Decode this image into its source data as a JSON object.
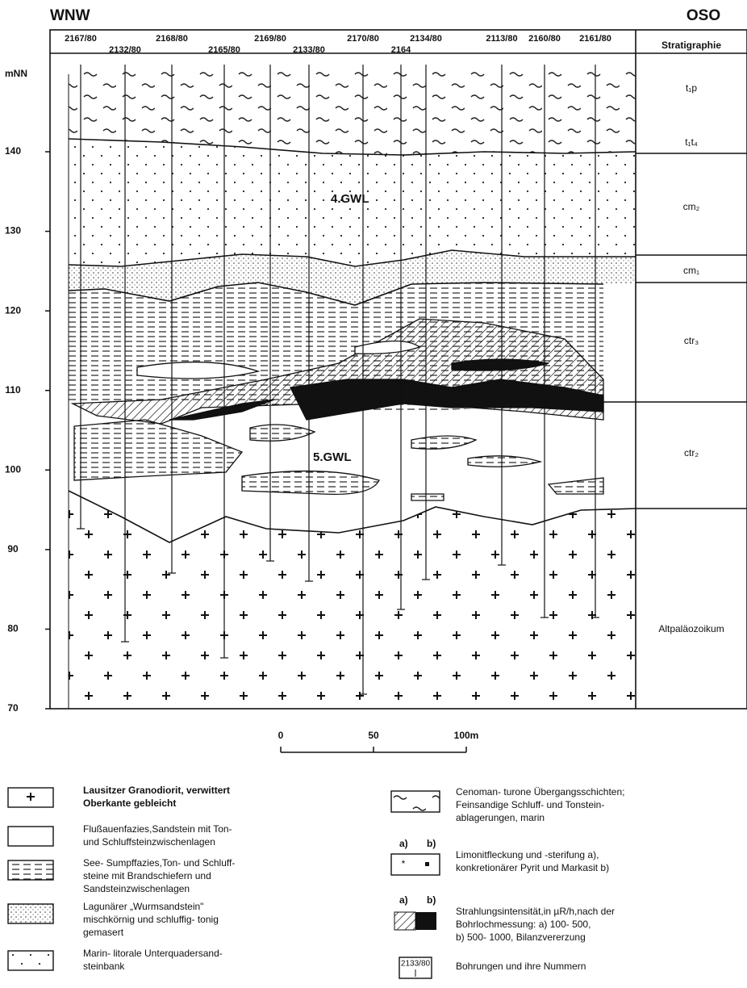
{
  "header": {
    "left": "WNW",
    "right": "OSO",
    "column_title": "Stratigraphie"
  },
  "boreholes": [
    "2167/80",
    "2132/80",
    "2168/80",
    "2165/80",
    "2169/80",
    "2133/80",
    "2170/80",
    "2164",
    "2134/80",
    "2113/80",
    "2160/80",
    "2161/80"
  ],
  "elevation_axis": {
    "label": "mNN",
    "ticks": [
      70,
      80,
      90,
      100,
      110,
      120,
      130,
      140
    ]
  },
  "stratigraphy": [
    "t₁p",
    "t₁t₄",
    "cm₂",
    "cm₁",
    "ctr₃",
    "ctr₂",
    "Altpaläozoikum"
  ],
  "annotations": [
    "4.GWL",
    "5.GWL"
  ],
  "scale_bar": {
    "ticks": [
      0,
      50,
      {
        "value": 100,
        "label": "100m"
      }
    ]
  },
  "legend": {
    "left": [
      {
        "text": [
          "Lausitzer Granodiorit, verwittert",
          "Oberkante gebleicht"
        ]
      },
      {
        "text": [
          "Flußauenfazies,Sandstein mit Ton-",
          "und Schluffsteinzwischenlagen"
        ]
      },
      {
        "text": [
          "See- Sumpffazies,Ton- und Schluff-",
          "steine mit Brandschiefern und",
          "Sandsteinzwischenlagen"
        ]
      },
      {
        "text": [
          "Lagunärer „Wurmsandstein\"",
          "mischkörnig und schluffig- tonig",
          "gemasert"
        ]
      },
      {
        "text": [
          "Marin- litorale Unterquadersand-",
          "steinbank"
        ]
      }
    ],
    "right": [
      {
        "text": [
          "Cenoman- turone Übergangsschichten;",
          "Feinsandige Schluff- und Tonstein-",
          "ablagerungen, marin"
        ]
      },
      {
        "sub_labels": [
          "a)",
          "b)"
        ],
        "text": [
          "Limonitfleckung und -sterifung a),",
          "konkretionärer Pyrit und Markasit b)"
        ]
      },
      {
        "sub_labels": [
          "a)",
          "b)"
        ],
        "text": [
          "Strahlungsintensität,in µR/h,nach der",
          "Bohrlochmessung: a) 100- 500,",
          "b) 500- 1000, Bilanzvererzung"
        ]
      },
      {
        "symbol_label": "2133/80",
        "text": [
          "Bohrungen und ihre Nummern"
        ]
      }
    ]
  }
}
